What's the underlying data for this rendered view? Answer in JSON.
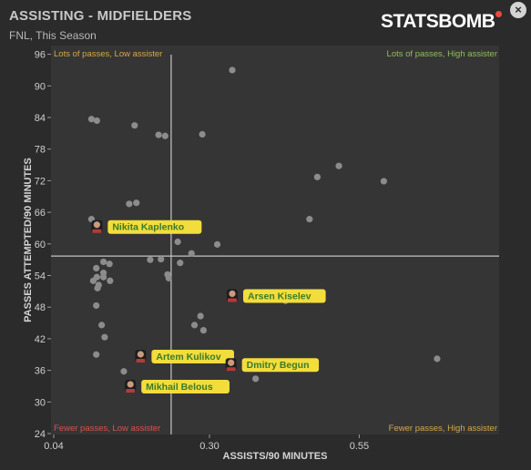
{
  "header": {
    "title": "ASSISTING - MIDFIELDERS",
    "subtitle": "FNL, This Season",
    "brand": "STATSBOMB",
    "close_label": "×"
  },
  "colors": {
    "background": "#2b2b2b",
    "plot_background": "#353535",
    "point": "#8c8c8c",
    "highlight_label": "#f2dd3c",
    "highlight_text": "#3a7a2a",
    "quadrant_low": "#d9534f",
    "quadrant_mixed": "#d6a84a",
    "quadrant_high": "#8fbf5a"
  },
  "chart_data": {
    "type": "scatter",
    "xlabel": "ASSISTS/90 MINUTES",
    "ylabel": "PASSES ATTEMPTED/90 MINUTES",
    "xlim": [
      0.04,
      0.75
    ],
    "ylim": [
      24,
      97
    ],
    "x_ticks": [
      0.04,
      0.3,
      0.55
    ],
    "x_tick_labels": [
      "0.04",
      "0.30",
      "0.55"
    ],
    "y_ticks": [
      24,
      30,
      36,
      42,
      48,
      54,
      60,
      66,
      72,
      78,
      84,
      90,
      96
    ],
    "divider": {
      "x": 0.236,
      "y": 57.7
    },
    "quadrant_labels": {
      "top_left": "Lots of passes, Low assister",
      "top_right": "Lots of passes, High assister",
      "bottom_left": "Fewer passes, Low assister",
      "bottom_right": "Fewer passes, High assister"
    },
    "points": [
      {
        "x": 0.338,
        "y": 93.0
      },
      {
        "x": 0.103,
        "y": 83.7
      },
      {
        "x": 0.112,
        "y": 83.4
      },
      {
        "x": 0.175,
        "y": 82.5
      },
      {
        "x": 0.215,
        "y": 80.7
      },
      {
        "x": 0.226,
        "y": 80.5
      },
      {
        "x": 0.288,
        "y": 80.8
      },
      {
        "x": 0.516,
        "y": 74.8
      },
      {
        "x": 0.48,
        "y": 72.7
      },
      {
        "x": 0.591,
        "y": 71.9
      },
      {
        "x": 0.166,
        "y": 67.6
      },
      {
        "x": 0.178,
        "y": 67.8
      },
      {
        "x": 0.103,
        "y": 64.7
      },
      {
        "x": 0.467,
        "y": 64.7
      },
      {
        "x": 0.247,
        "y": 60.4
      },
      {
        "x": 0.313,
        "y": 59.9
      },
      {
        "x": 0.27,
        "y": 58.2
      },
      {
        "x": 0.201,
        "y": 57.0
      },
      {
        "x": 0.219,
        "y": 57.1
      },
      {
        "x": 0.251,
        "y": 56.4
      },
      {
        "x": 0.123,
        "y": 56.6
      },
      {
        "x": 0.133,
        "y": 56.2
      },
      {
        "x": 0.111,
        "y": 55.4
      },
      {
        "x": 0.123,
        "y": 54.5
      },
      {
        "x": 0.123,
        "y": 53.7
      },
      {
        "x": 0.112,
        "y": 53.7
      },
      {
        "x": 0.23,
        "y": 54.2
      },
      {
        "x": 0.232,
        "y": 53.5
      },
      {
        "x": 0.106,
        "y": 53.0
      },
      {
        "x": 0.134,
        "y": 53.0
      },
      {
        "x": 0.115,
        "y": 52.2
      },
      {
        "x": 0.113,
        "y": 51.6
      },
      {
        "x": 0.111,
        "y": 48.3
      },
      {
        "x": 0.397,
        "y": 50.6
      },
      {
        "x": 0.427,
        "y": 49.2
      },
      {
        "x": 0.285,
        "y": 46.3
      },
      {
        "x": 0.12,
        "y": 44.6
      },
      {
        "x": 0.275,
        "y": 44.6
      },
      {
        "x": 0.29,
        "y": 43.6
      },
      {
        "x": 0.125,
        "y": 42.3
      },
      {
        "x": 0.111,
        "y": 39.0
      },
      {
        "x": 0.157,
        "y": 35.8
      },
      {
        "x": 0.377,
        "y": 34.4
      },
      {
        "x": 0.68,
        "y": 38.2
      }
    ],
    "highlights": [
      {
        "name": "Nikita Kaplenko",
        "x": 0.112,
        "y": 63.3
      },
      {
        "name": "Arsen Kiselev",
        "x": 0.338,
        "y": 50.2
      },
      {
        "name": "Artem Kulikov",
        "x": 0.185,
        "y": 38.7
      },
      {
        "name": "Dmitry Begun",
        "x": 0.336,
        "y": 37.1
      },
      {
        "name": "Mikhail Belous",
        "x": 0.168,
        "y": 33.0
      }
    ]
  }
}
